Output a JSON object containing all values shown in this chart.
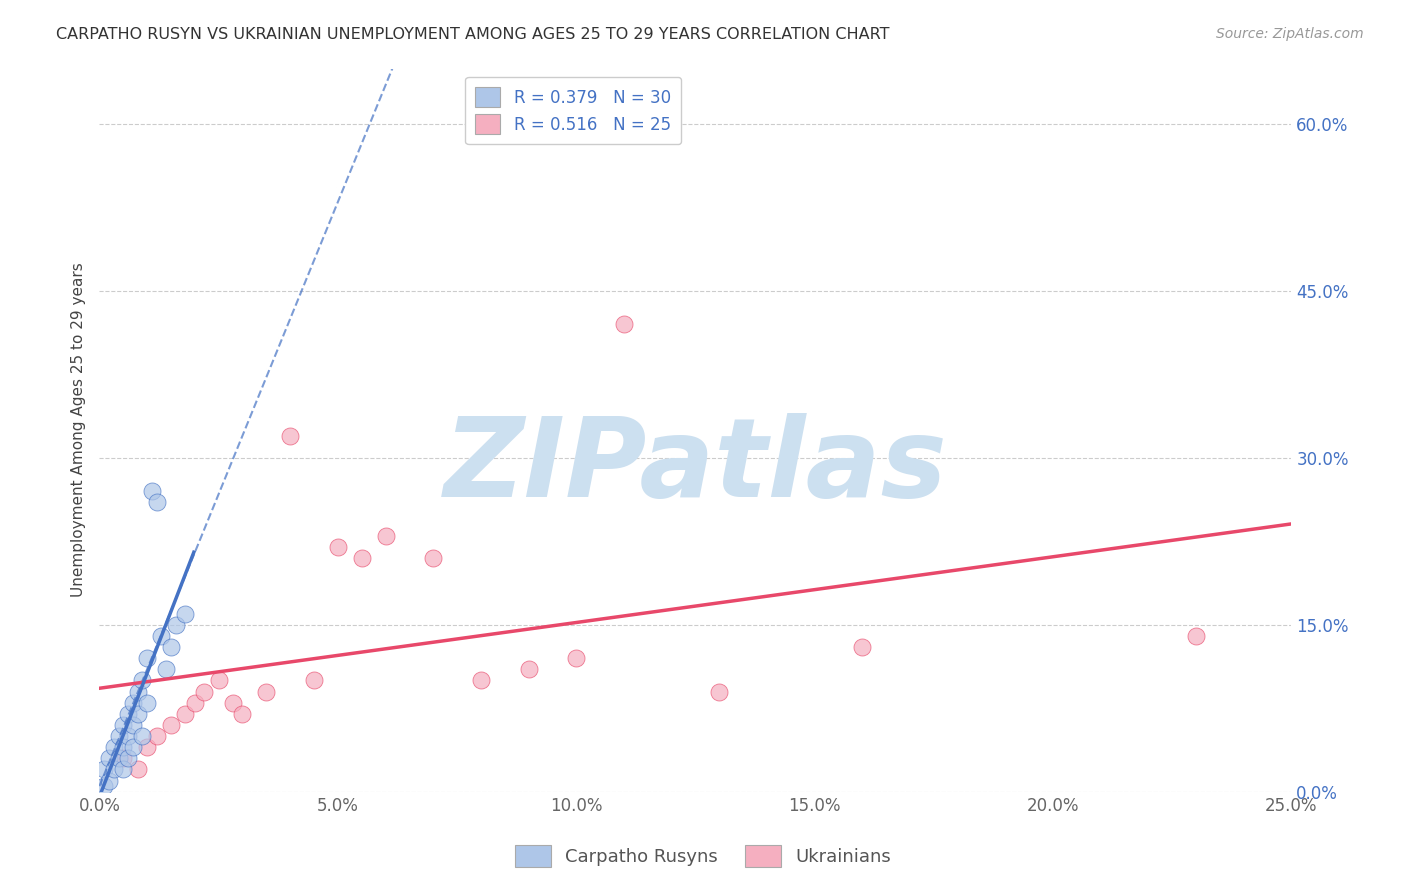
{
  "title": "CARPATHO RUSYN VS UKRAINIAN UNEMPLOYMENT AMONG AGES 25 TO 29 YEARS CORRELATION CHART",
  "source": "Source: ZipAtlas.com",
  "ylabel": "Unemployment Among Ages 25 to 29 years",
  "xlim": [
    0.0,
    0.25
  ],
  "ylim": [
    0.0,
    0.65
  ],
  "watermark": "ZIPatlas",
  "legend_label1": "Carpatho Rusyns",
  "legend_label2": "Ukrainians",
  "R1": 0.379,
  "N1": 30,
  "R2": 0.516,
  "N2": 25,
  "color1": "#aec6e8",
  "color2": "#f5afc0",
  "trendline1_color": "#4472c4",
  "trendline2_color": "#e8486a",
  "background_color": "#ffffff",
  "grid_color": "#cccccc",
  "title_color": "#333333",
  "source_color": "#999999",
  "watermark_color": "#cce0f0",
  "carpatho_x": [
    0.001,
    0.001,
    0.002,
    0.002,
    0.003,
    0.003,
    0.004,
    0.004,
    0.005,
    0.005,
    0.005,
    0.006,
    0.006,
    0.006,
    0.007,
    0.007,
    0.007,
    0.008,
    0.008,
    0.009,
    0.009,
    0.01,
    0.01,
    0.011,
    0.012,
    0.013,
    0.014,
    0.015,
    0.016,
    0.018
  ],
  "carpatho_y": [
    0.02,
    0.005,
    0.03,
    0.01,
    0.04,
    0.02,
    0.05,
    0.03,
    0.06,
    0.04,
    0.02,
    0.07,
    0.05,
    0.03,
    0.08,
    0.06,
    0.04,
    0.09,
    0.07,
    0.1,
    0.05,
    0.12,
    0.08,
    0.27,
    0.26,
    0.14,
    0.11,
    0.13,
    0.15,
    0.16
  ],
  "ukrainian_x": [
    0.005,
    0.008,
    0.01,
    0.012,
    0.015,
    0.018,
    0.02,
    0.022,
    0.025,
    0.028,
    0.03,
    0.035,
    0.04,
    0.045,
    0.05,
    0.055,
    0.06,
    0.07,
    0.08,
    0.09,
    0.1,
    0.11,
    0.13,
    0.16,
    0.23
  ],
  "ukrainian_y": [
    0.03,
    0.02,
    0.04,
    0.05,
    0.06,
    0.07,
    0.08,
    0.09,
    0.1,
    0.08,
    0.07,
    0.09,
    0.32,
    0.1,
    0.22,
    0.21,
    0.23,
    0.21,
    0.1,
    0.11,
    0.12,
    0.42,
    0.09,
    0.13,
    0.14
  ],
  "x_tick_vals": [
    0.0,
    0.05,
    0.1,
    0.15,
    0.2,
    0.25
  ],
  "y_tick_vals": [
    0.0,
    0.15,
    0.3,
    0.45,
    0.6
  ]
}
